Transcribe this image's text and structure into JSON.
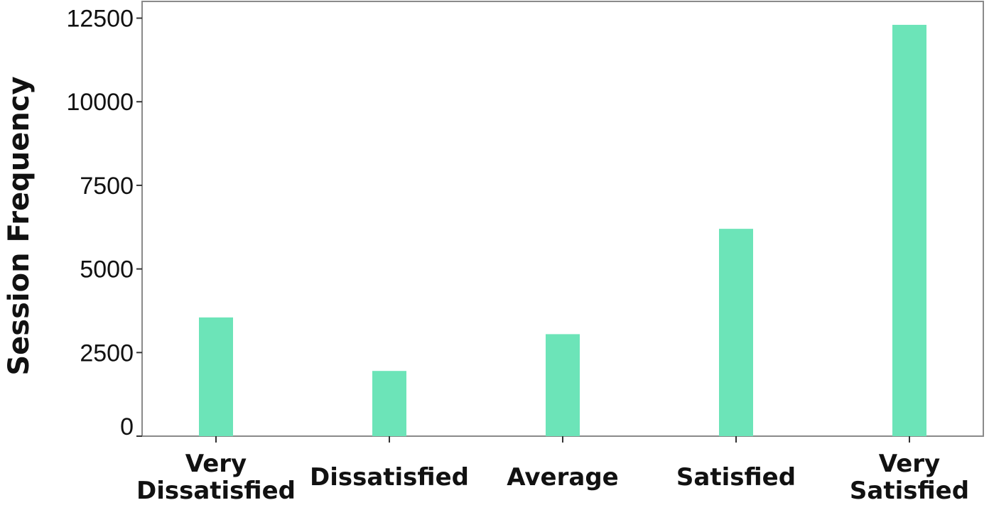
{
  "chart_data": {
    "type": "bar",
    "title": "",
    "xlabel": "",
    "ylabel": "Session Frequency",
    "categories": [
      [
        "Very",
        "Dissatisfied"
      ],
      [
        "Dissatisfied"
      ],
      [
        "Average"
      ],
      [
        "Satisfied"
      ],
      [
        "Very",
        "Satisfied"
      ]
    ],
    "values": [
      3550,
      1950,
      3050,
      6200,
      12300
    ],
    "ylim": [
      0,
      13000
    ],
    "yticks": [
      0,
      2500,
      5000,
      7500,
      10000,
      12500
    ],
    "ytick_labels": [
      "0",
      "2500",
      "5000",
      "7500",
      "10000",
      "12500"
    ],
    "bar_color": "#6ce4b8",
    "frame_color": "#8a8a8a",
    "grid": false,
    "legend": "none"
  }
}
